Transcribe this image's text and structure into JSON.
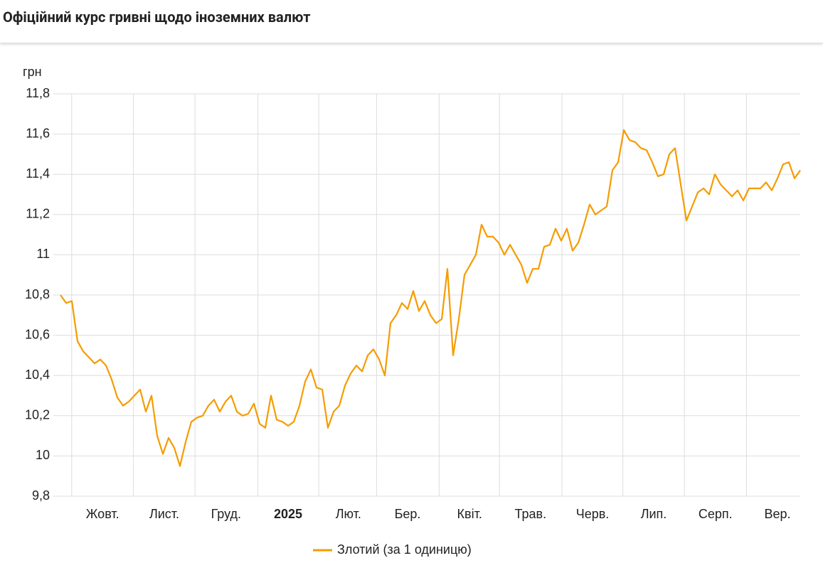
{
  "chart_data": {
    "type": "line",
    "title": "Офіційний курс гривні щодо іноземних валют",
    "y_label": "грн",
    "xlim": [
      0,
      130
    ],
    "xticks": [
      {
        "value": 7.4,
        "label": "Жовт."
      },
      {
        "value": 18.25,
        "label": "Лист."
      },
      {
        "value": 29.1,
        "label": "Груд."
      },
      {
        "value": 40,
        "label": "2025",
        "bold": true
      },
      {
        "value": 50.6,
        "label": "Лют."
      },
      {
        "value": 61,
        "label": "Бер."
      },
      {
        "value": 71.9,
        "label": "Квіт."
      },
      {
        "value": 82.6,
        "label": "Трав."
      },
      {
        "value": 93.5,
        "label": "Черв."
      },
      {
        "value": 104.25,
        "label": "Лип."
      },
      {
        "value": 115.1,
        "label": "Серп."
      },
      {
        "value": 126,
        "label": "Вер."
      }
    ],
    "ylim": [
      9.8,
      11.8
    ],
    "yticks": [
      {
        "value": 9.8,
        "label": "9,8"
      },
      10,
      {
        "value": 10.2,
        "label": "10,2"
      },
      {
        "value": 10.4,
        "label": "10,4"
      },
      {
        "value": 10.6,
        "label": "10,6"
      },
      {
        "value": 10.8,
        "label": "10,8"
      },
      11,
      {
        "value": 11.2,
        "label": "11,2"
      },
      {
        "value": 11.4,
        "label": "11,4"
      },
      {
        "value": 11.6,
        "label": "11,6"
      },
      {
        "value": 11.8,
        "label": "11,8"
      }
    ],
    "grid": true,
    "legend": "bottom",
    "series": [
      {
        "name": "Злотий (за 1 одиницю)",
        "color": "#f59c00",
        "values": [
          10.8,
          10.76,
          10.77,
          10.57,
          10.52,
          10.49,
          10.46,
          10.48,
          10.45,
          10.38,
          10.29,
          10.25,
          10.27,
          10.3,
          10.33,
          10.22,
          10.3,
          10.1,
          10.01,
          10.09,
          10.04,
          9.95,
          10.07,
          10.17,
          10.19,
          10.2,
          10.25,
          10.28,
          10.22,
          10.27,
          10.3,
          10.22,
          10.2,
          10.21,
          10.26,
          10.16,
          10.14,
          10.3,
          10.18,
          10.17,
          10.15,
          10.17,
          10.25,
          10.37,
          10.43,
          10.34,
          10.33,
          10.14,
          10.22,
          10.25,
          10.35,
          10.41,
          10.45,
          10.42,
          10.5,
          10.53,
          10.48,
          10.4,
          10.66,
          10.7,
          10.76,
          10.73,
          10.82,
          10.72,
          10.77,
          10.7,
          10.66,
          10.68,
          10.93,
          10.5,
          10.68,
          10.9,
          10.95,
          11.0,
          11.15,
          11.09,
          11.09,
          11.06,
          11.0,
          11.05,
          11.0,
          10.95,
          10.86,
          10.93,
          10.93,
          11.04,
          11.05,
          11.13,
          11.07,
          11.13,
          11.02,
          11.06,
          11.15,
          11.25,
          11.2,
          11.22,
          11.24,
          11.42,
          11.46,
          11.62,
          11.57,
          11.56,
          11.53,
          11.52,
          11.46,
          11.39,
          11.4,
          11.5,
          11.53,
          11.35,
          11.17,
          11.24,
          11.31,
          11.33,
          11.3,
          11.4,
          11.35,
          11.32,
          11.29,
          11.32,
          11.27,
          11.33,
          11.33,
          11.33,
          11.36,
          11.32,
          11.38,
          11.45,
          11.46,
          11.38,
          11.42
        ]
      }
    ]
  }
}
